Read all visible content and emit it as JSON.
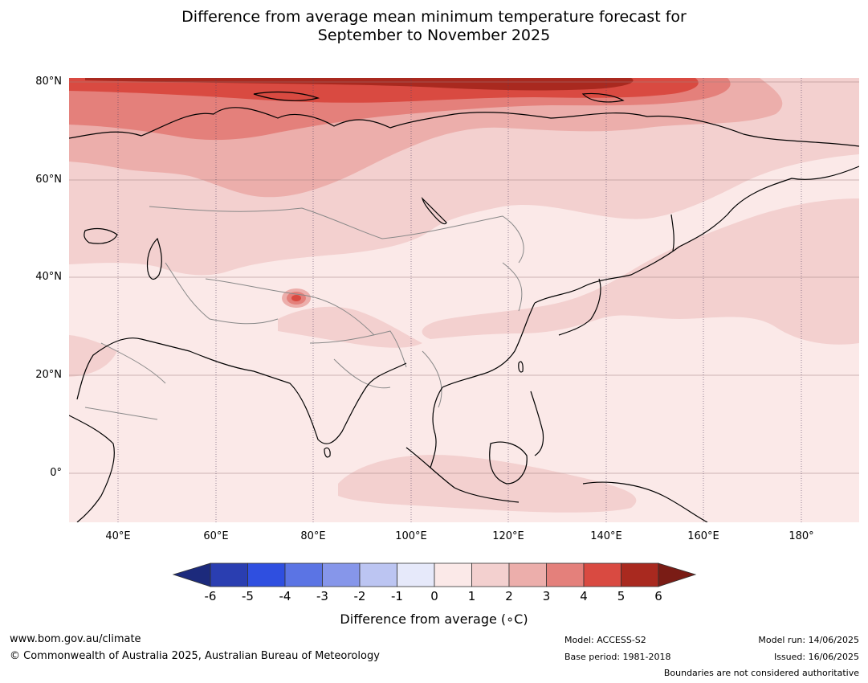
{
  "title_line1": "Difference from average mean minimum temperature forecast for",
  "title_line2": "September to November 2025",
  "lat_labels": [
    "80°N",
    "60°N",
    "40°N",
    "20°N",
    "0°"
  ],
  "lon_labels": [
    "40°E",
    "60°E",
    "80°E",
    "100°E",
    "120°E",
    "140°E",
    "160°E",
    "180°"
  ],
  "colorbar": {
    "ticks": [
      "-6",
      "-5",
      "-4",
      "-3",
      "-2",
      "-1",
      "0",
      "1",
      "2",
      "3",
      "4",
      "5",
      "6"
    ],
    "colors": [
      "#2a3eb1",
      "#2f4fe0",
      "#5b74e4",
      "#8696ea",
      "#bcc5f2",
      "#e6e9fa",
      "#fbe9e8",
      "#f3d0cf",
      "#ecaeab",
      "#e4807b",
      "#d94a41",
      "#a9291f"
    ],
    "under_color": "#1c2a7c",
    "over_color": "#7a1c15",
    "label": "Difference from average (∘C)"
  },
  "footer": {
    "url": "www.bom.gov.au/climate",
    "copyright": "© Commonwealth of Australia 2025, Australian Bureau of Meteorology",
    "model": "Model: ACCESS-S2",
    "base_period": "Base period: 1981-2018",
    "model_run": "Model run: 14/06/2025",
    "issued": "Issued: 16/06/2025",
    "disclaimer": "Boundaries are not considered authoritative"
  }
}
